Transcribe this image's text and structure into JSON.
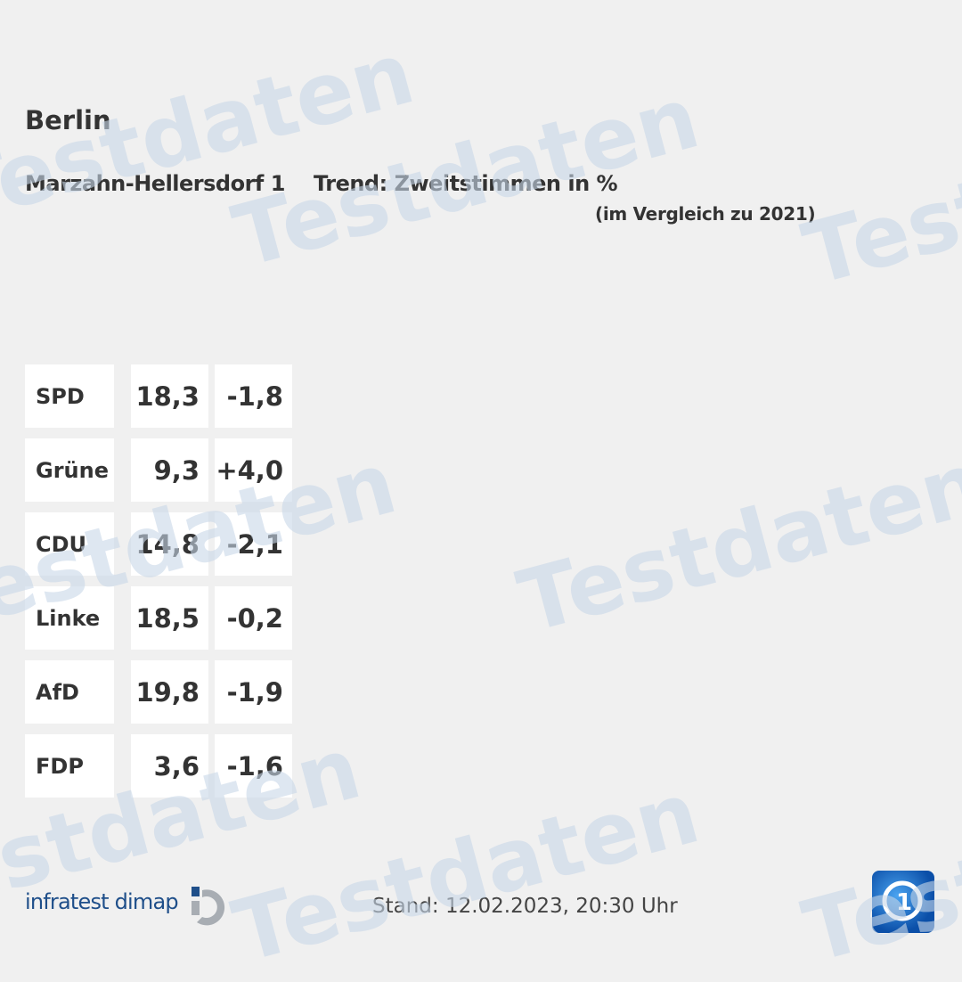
{
  "header": {
    "region": "Berlin",
    "district": "Marzahn-Hellersdorf 1",
    "trend": "Trend: Zweitstimmen in %",
    "comparison": "(im Vergleich zu 2021)"
  },
  "results": [
    {
      "party": "SPD",
      "value": "18,3",
      "diff": "-1,8"
    },
    {
      "party": "Grüne",
      "value": "9,3",
      "diff": "+4,0"
    },
    {
      "party": "CDU",
      "value": "14,8",
      "diff": "-2,1"
    },
    {
      "party": "Linke",
      "value": "18,5",
      "diff": "-0,2"
    },
    {
      "party": "AfD",
      "value": "19,8",
      "diff": "-1,9"
    },
    {
      "party": "FDP",
      "value": "3,6",
      "diff": "-1,6"
    }
  ],
  "footer": {
    "source": "infratest dimap",
    "stand": "Stand: 12.02.2023, 20:30 Uhr"
  },
  "watermark": "Testdaten",
  "colors": {
    "background": "#f0f0f0",
    "brand": "#1f4f8a",
    "watermark": "#c8d7e8"
  }
}
